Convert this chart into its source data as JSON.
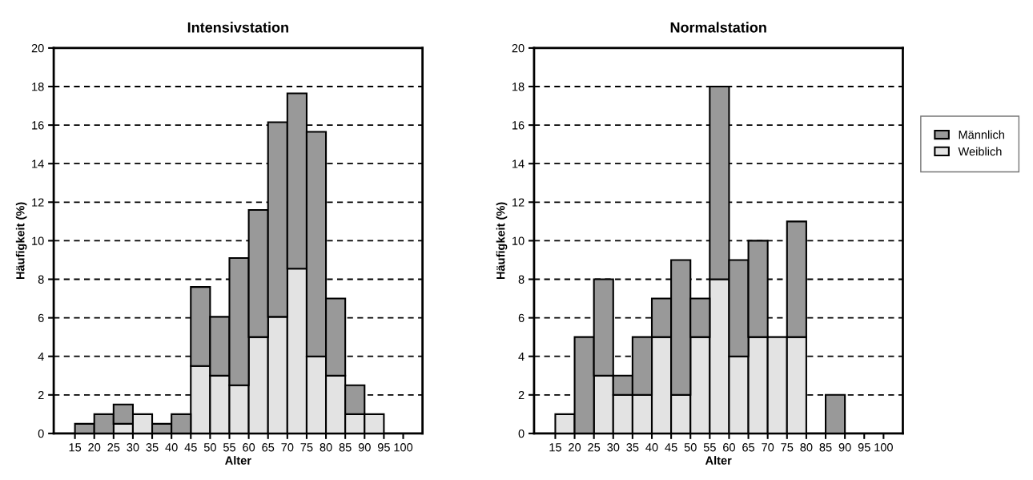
{
  "chart_data": [
    {
      "type": "bar",
      "title": "Intensivstation",
      "xlabel": "Alter",
      "ylabel": "Häufigkeit (%)",
      "stacked": true,
      "x": [
        17.5,
        22.5,
        27.5,
        32.5,
        37.5,
        42.5,
        47.5,
        52.5,
        57.5,
        62.5,
        67.5,
        72.5,
        77.5,
        82.5,
        87.5,
        92.5,
        97.5
      ],
      "series": [
        {
          "name": "Weiblich",
          "color": "#e3e3e3",
          "values": [
            0,
            0,
            0.5,
            1,
            0,
            0,
            3.5,
            3,
            2.5,
            5,
            6.05,
            8.55,
            4,
            3,
            1,
            1,
            0
          ]
        },
        {
          "name": "Männlich",
          "color": "#999999",
          "values": [
            0.5,
            1,
            1,
            0,
            0.5,
            1,
            4.1,
            3.05,
            6.6,
            6.6,
            10.1,
            9.1,
            11.65,
            4,
            1.5,
            0,
            0
          ]
        }
      ],
      "xlim": [
        9.5,
        105
      ],
      "xticks": [
        15,
        20,
        25,
        30,
        35,
        40,
        45,
        50,
        55,
        60,
        65,
        70,
        75,
        80,
        85,
        90,
        95,
        100
      ],
      "ylim": [
        0,
        20
      ],
      "yticks": [
        0,
        2,
        4,
        6,
        8,
        10,
        12,
        14,
        16,
        18,
        20
      ],
      "grid": "y",
      "line_style": "dashed",
      "legend": "right"
    },
    {
      "type": "bar",
      "title": "Normalstation",
      "xlabel": "Alter",
      "ylabel": "Häufigkeit (%)",
      "stacked": true,
      "x": [
        17.5,
        22.5,
        27.5,
        32.5,
        37.5,
        42.5,
        47.5,
        52.5,
        57.5,
        62.5,
        67.5,
        72.5,
        77.5,
        82.5,
        87.5,
        92.5,
        97.5
      ],
      "series": [
        {
          "color": "#e3e3e3",
          "values": [
            1,
            0,
            3,
            2,
            2,
            5,
            2,
            5,
            8,
            4,
            5,
            5,
            5,
            0,
            0,
            0,
            0
          ]
        },
        {
          "color": "#999999",
          "values": [
            0,
            5,
            5,
            1,
            3,
            2,
            7,
            2,
            10,
            5,
            5,
            0,
            6,
            0,
            2,
            0,
            0
          ]
        }
      ],
      "xlim": [
        9.5,
        105
      ],
      "xticks": [
        15,
        20,
        25,
        30,
        35,
        40,
        45,
        50,
        55,
        60,
        65,
        70,
        75,
        80,
        85,
        90,
        95,
        100
      ],
      "ylim": [
        0,
        20
      ],
      "yticks": [
        0,
        2,
        4,
        6,
        8,
        10,
        12,
        14,
        16,
        18,
        20
      ],
      "grid": "y",
      "line_style": "dashed"
    }
  ]
}
